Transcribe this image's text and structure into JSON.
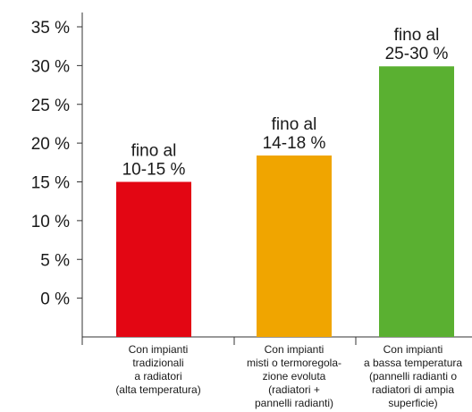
{
  "chart_data": {
    "type": "bar",
    "categories": [
      [
        "Con impianti",
        "tradizionali",
        "a radiatori",
        "(alta temperatura)"
      ],
      [
        "Con impianti",
        "misti o termoregola-",
        "zione evoluta",
        "(radiatori +",
        "pannelli radianti)"
      ],
      [
        "Con impianti",
        "a bassa temperatura",
        "(pannelli radianti o",
        "radiatori di ampia",
        "superficie)"
      ]
    ],
    "values": [
      15,
      18.4,
      29.9
    ],
    "data_labels": [
      [
        "fino al",
        "10-15 %"
      ],
      [
        "fino al",
        "14-18 %"
      ],
      [
        "fino al",
        "25-30 %"
      ]
    ],
    "colors": [
      "#e30613",
      "#f0a500",
      "#5ab031"
    ],
    "yticks": [
      "0 %",
      "5 %",
      "10 %",
      "15 %",
      "20 %",
      "25 %",
      "30 %",
      "35 %"
    ],
    "ylim": [
      -5,
      35
    ],
    "grid": false,
    "title": "",
    "xlabel": "",
    "ylabel": ""
  }
}
